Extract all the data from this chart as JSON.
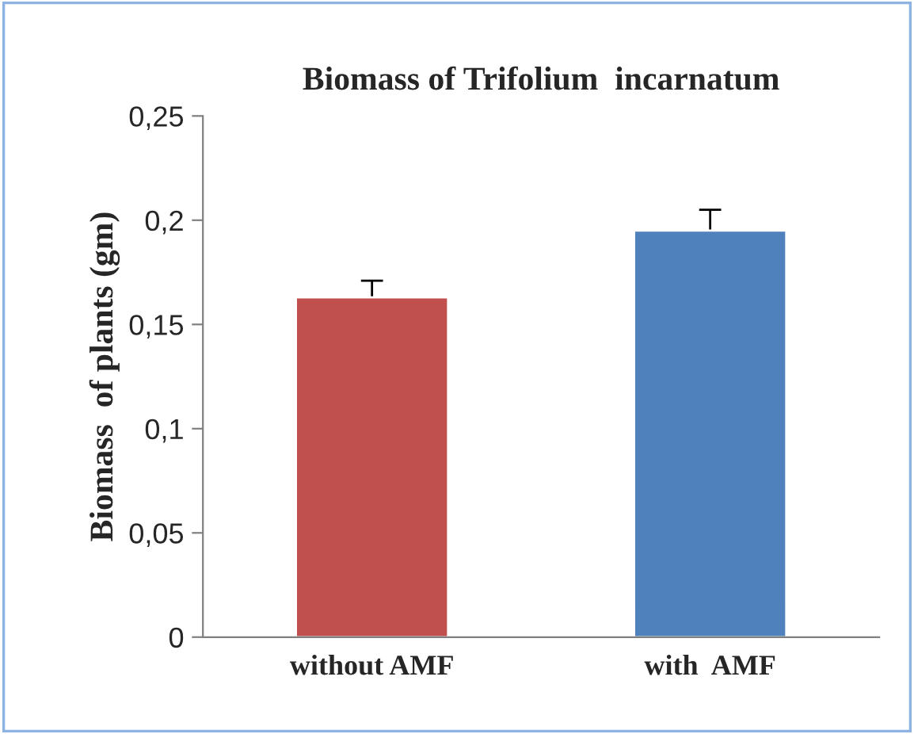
{
  "chart_data": {
    "type": "bar",
    "title": "Biomass of Trifolium  incarnatum",
    "ylabel": "Biomass  of plants (gm)",
    "categories": [
      "without AMF",
      "with  AMF"
    ],
    "values": [
      0.163,
      0.195
    ],
    "colors": [
      "#c0504d",
      "#4f81bd"
    ],
    "errors": [
      0.008,
      0.01
    ],
    "ylim": [
      0,
      0.25
    ],
    "yticks": [
      {
        "value": 0,
        "label": "0"
      },
      {
        "value": 0.05,
        "label": "0,05"
      },
      {
        "value": 0.1,
        "label": "0,1"
      },
      {
        "value": 0.15,
        "label": "0,15"
      },
      {
        "value": 0.2,
        "label": "0,2"
      },
      {
        "value": 0.25,
        "label": "0,25"
      }
    ],
    "grid": false,
    "legend": false
  }
}
